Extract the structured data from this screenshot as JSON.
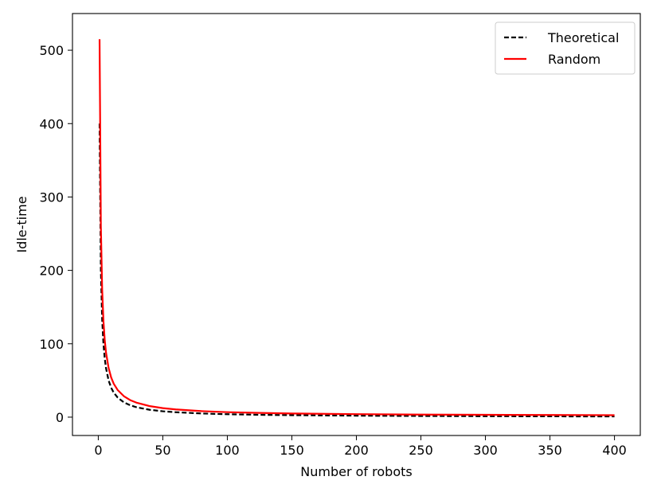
{
  "chart_data": {
    "type": "line",
    "xlabel": "Number of robots",
    "ylabel": "Idle-time",
    "xlim": [
      -20,
      420
    ],
    "ylim": [
      -25,
      550
    ],
    "xticks": [
      0,
      50,
      100,
      150,
      200,
      250,
      300,
      350,
      400
    ],
    "yticks": [
      0,
      100,
      200,
      300,
      400,
      500
    ],
    "grid": false,
    "legend": {
      "position": "top-right"
    },
    "series": [
      {
        "name": "Theoretical",
        "color": "#000000",
        "style": "dashed",
        "x": [
          1,
          2,
          3,
          4,
          5,
          6,
          8,
          10,
          12,
          15,
          20,
          25,
          30,
          40,
          50,
          60,
          80,
          100,
          125,
          150,
          200,
          250,
          300,
          350,
          400
        ],
        "y": [
          400,
          200,
          133.3,
          100,
          80,
          66.7,
          50,
          40,
          33.3,
          26.7,
          20,
          16,
          13.3,
          10,
          8,
          6.7,
          5,
          4,
          3.2,
          2.7,
          2,
          1.6,
          1.3,
          1.1,
          1
        ]
      },
      {
        "name": "Random",
        "color": "#ff0000",
        "style": "solid",
        "x": [
          1,
          2,
          3,
          4,
          5,
          6,
          8,
          10,
          12,
          15,
          20,
          25,
          30,
          40,
          50,
          60,
          80,
          100,
          125,
          150,
          200,
          250,
          300,
          350,
          400
        ],
        "y": [
          515,
          260,
          174,
          131,
          105,
          88,
          67,
          54,
          45.5,
          37,
          28.3,
          23,
          19.5,
          15,
          12.3,
          10.5,
          8.2,
          6.8,
          5.8,
          5,
          4.1,
          3.5,
          3.2,
          2.9,
          2.7
        ]
      }
    ]
  }
}
